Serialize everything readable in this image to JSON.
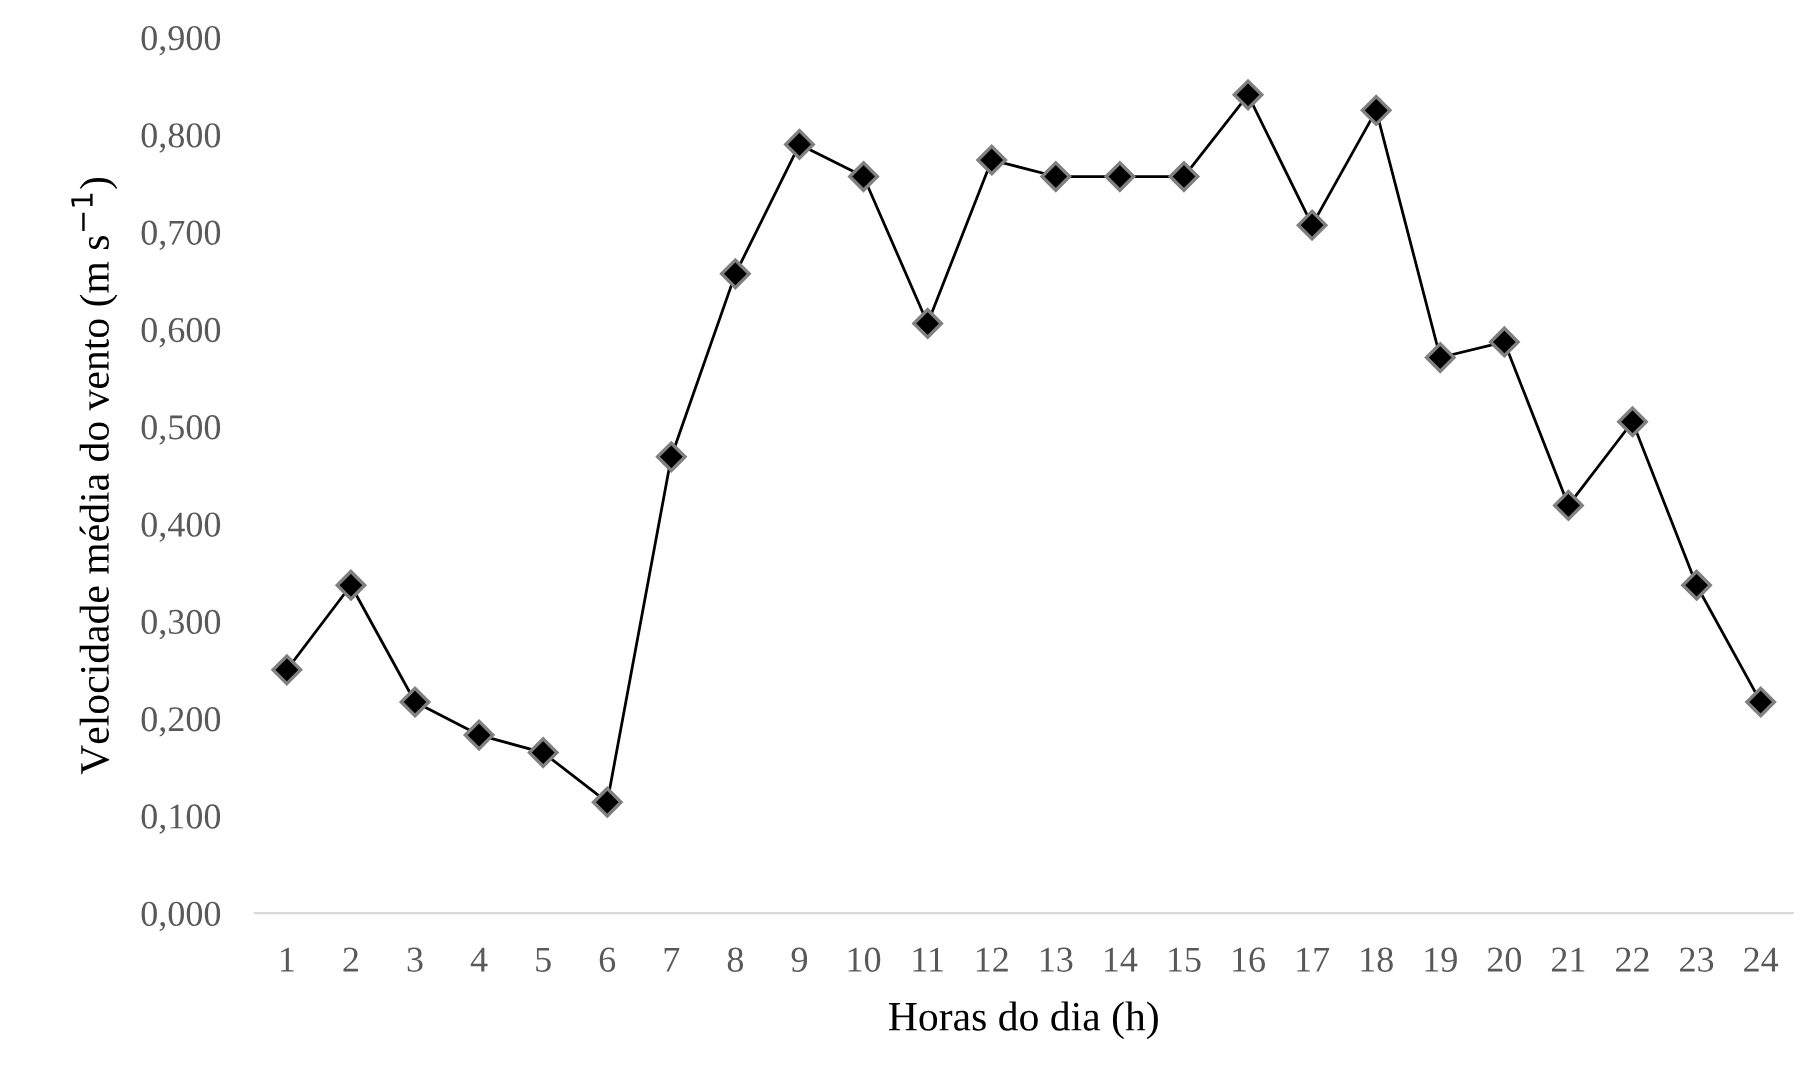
{
  "chart_data": {
    "type": "line",
    "xlabel": "Horas do dia (h)",
    "ylabel": "Velocidade média do vento (m s$^{−1}$)",
    "categories": [
      "1",
      "2",
      "3",
      "4",
      "5",
      "6",
      "7",
      "8",
      "9",
      "10",
      "11",
      "12",
      "13",
      "14",
      "15",
      "16",
      "17",
      "18",
      "19",
      "20",
      "21",
      "22",
      "23",
      "24"
    ],
    "series": [
      {
        "color": "#000000",
        "values": [
          0.25,
          0.337,
          0.217,
          0.183,
          0.165,
          0.114,
          0.469,
          0.657,
          0.79,
          0.757,
          0.606,
          0.774,
          0.757,
          0.757,
          0.757,
          0.841,
          0.707,
          0.825,
          0.571,
          0.587,
          0.419,
          0.505,
          0.337,
          0.217
        ]
      }
    ],
    "ylim": [
      0,
      0.9
    ],
    "yticks": [
      {
        "value": 0,
        "label": "0,000"
      },
      {
        "value": 0.1,
        "label": "0,100"
      },
      {
        "value": 0.2,
        "label": "0,200"
      },
      {
        "value": 0.3,
        "label": "0,300"
      },
      {
        "value": 0.4,
        "label": "0,400"
      },
      {
        "value": 0.5,
        "label": "0,500"
      },
      {
        "value": 0.6,
        "label": "0,600"
      },
      {
        "value": 0.7,
        "label": "0,700"
      },
      {
        "value": 0.8,
        "label": "0,800"
      },
      {
        "value": 0.9,
        "label": "0,900"
      }
    ],
    "grid": false,
    "legend": false,
    "marker": "diamond",
    "line_style": "solid"
  }
}
